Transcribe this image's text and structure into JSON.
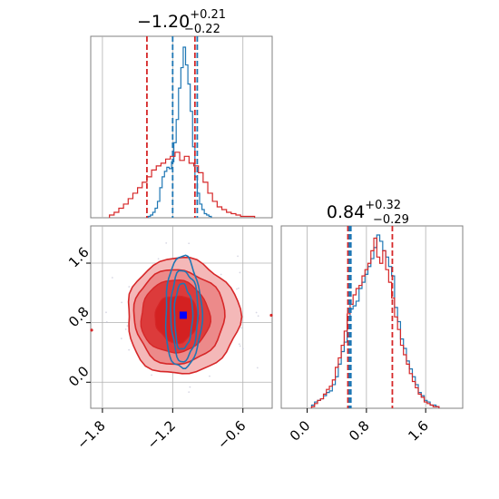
{
  "chart_data": [
    {
      "type": "histogram",
      "panel": "top-left",
      "title": {
        "median": "−1.20",
        "plus": "+0.21",
        "minus": "−0.22"
      },
      "xlim": [
        -1.9,
        -0.35
      ],
      "grid": true,
      "quantile_lines": {
        "red": [
          -1.42,
          -1.01
        ],
        "blue": [
          -1.2,
          -0.99
        ],
        "red_median": -1.0
      },
      "series": [
        {
          "color": "#1f77b4",
          "x": [
            -1.4,
            -1.38,
            -1.36,
            -1.34,
            -1.32,
            -1.3,
            -1.28,
            -1.26,
            -1.24,
            -1.22,
            -1.2,
            -1.18,
            -1.16,
            -1.14,
            -1.12,
            -1.1,
            -1.08,
            -1.06,
            -1.04,
            -1.02,
            -1.0,
            -0.98,
            -0.96,
            -0.94,
            -0.92,
            -0.9,
            -0.88
          ],
          "values": [
            1,
            2,
            4,
            7,
            12,
            22,
            30,
            34,
            37,
            36,
            41,
            55,
            72,
            95,
            110,
            125,
            112,
            98,
            78,
            52,
            30,
            18,
            10,
            6,
            3,
            2,
            1
          ]
        },
        {
          "color": "#d62728",
          "x": [
            -1.72,
            -1.68,
            -1.64,
            -1.6,
            -1.56,
            -1.52,
            -1.48,
            -1.44,
            -1.4,
            -1.36,
            -1.32,
            -1.28,
            -1.24,
            -1.2,
            -1.16,
            -1.12,
            -1.08,
            -1.04,
            -1.0,
            -0.96,
            -0.92,
            -0.88,
            -0.84,
            -0.8,
            -0.76,
            -0.72,
            -0.68,
            -0.64,
            -0.6,
            -0.56,
            -0.52
          ],
          "values": [
            2,
            4,
            7,
            10,
            14,
            18,
            22,
            26,
            30,
            35,
            38,
            40,
            43,
            45,
            48,
            42,
            45,
            40,
            38,
            33,
            26,
            18,
            12,
            8,
            6,
            4,
            3,
            2,
            1,
            1,
            1
          ]
        }
      ]
    },
    {
      "type": "contour",
      "panel": "bottom-left",
      "xlim": [
        -1.9,
        -0.35
      ],
      "ylim": [
        -0.35,
        2.1
      ],
      "xticks": [
        "−1.8",
        "−1.2",
        "−0.6"
      ],
      "yticks": [
        "0.0",
        "0.8",
        "1.6"
      ],
      "grid": true,
      "red_center": [
        -1.15,
        0.88
      ],
      "blue_center": [
        -1.11,
        0.88
      ],
      "marker": {
        "x": -1.11,
        "y": 0.9,
        "color": "#0000ff"
      }
    },
    {
      "type": "histogram",
      "panel": "bottom-right",
      "title": {
        "median": "0.84",
        "plus": "+0.32",
        "minus": "−0.29"
      },
      "xlim": [
        -0.35,
        2.1
      ],
      "xticks": [
        "0.0",
        "0.8",
        "1.6"
      ],
      "grid": true,
      "quantile_lines": {
        "red": [
          0.55,
          1.15
        ],
        "blue": [
          0.57,
          0.59
        ]
      },
      "series": [
        {
          "color": "#1f77b4",
          "x": [
            0.08,
            0.12,
            0.16,
            0.2,
            0.24,
            0.28,
            0.32,
            0.36,
            0.4,
            0.44,
            0.48,
            0.52,
            0.56,
            0.6,
            0.64,
            0.68,
            0.72,
            0.76,
            0.8,
            0.84,
            0.88,
            0.92,
            0.96,
            1.0,
            1.04,
            1.08,
            1.12,
            1.16,
            1.2,
            1.24,
            1.28,
            1.32,
            1.36,
            1.4,
            1.44,
            1.48,
            1.52,
            1.56,
            1.6,
            1.64,
            1.68,
            1.72,
            1.76
          ],
          "values": [
            2,
            4,
            5,
            6,
            8,
            10,
            11,
            15,
            20,
            28,
            36,
            42,
            58,
            63,
            65,
            68,
            76,
            80,
            85,
            90,
            95,
            102,
            110,
            106,
            100,
            96,
            90,
            84,
            64,
            55,
            44,
            38,
            30,
            25,
            20,
            15,
            10,
            8,
            5,
            4,
            2,
            2,
            1
          ]
        },
        {
          "color": "#d62728",
          "x": [
            0.08,
            0.12,
            0.16,
            0.2,
            0.24,
            0.28,
            0.32,
            0.36,
            0.4,
            0.44,
            0.48,
            0.52,
            0.56,
            0.6,
            0.64,
            0.68,
            0.72,
            0.76,
            0.8,
            0.84,
            0.88,
            0.92,
            0.96,
            1.0,
            1.04,
            1.08,
            1.12,
            1.16,
            1.2,
            1.24,
            1.28,
            1.32,
            1.36,
            1.4,
            1.44,
            1.48,
            1.52,
            1.56,
            1.6,
            1.64,
            1.68,
            1.72,
            1.76
          ],
          "values": [
            1,
            3,
            5,
            6,
            9,
            12,
            14,
            18,
            26,
            32,
            40,
            49,
            60,
            66,
            72,
            76,
            78,
            84,
            88,
            92,
            100,
            108,
            96,
            92,
            100,
            88,
            80,
            70,
            58,
            50,
            40,
            34,
            28,
            22,
            17,
            13,
            9,
            7,
            4,
            3,
            2,
            1,
            1
          ]
        }
      ]
    }
  ]
}
